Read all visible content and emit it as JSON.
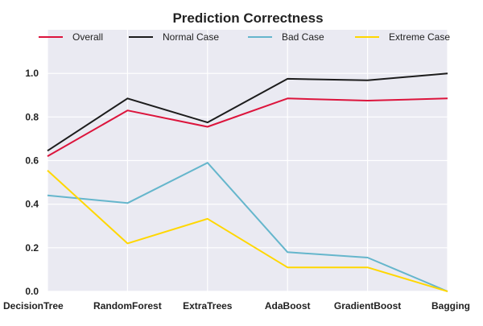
{
  "chart_data": {
    "type": "line",
    "title": "Prediction Correctness",
    "xlabel": "",
    "ylabel": "",
    "categories": [
      "DecisionTree",
      "RandomForest",
      "ExtraTrees",
      "AdaBoost",
      "GradientBoost",
      "Bagging"
    ],
    "ylim": [
      0.0,
      1.2
    ],
    "yticks": [
      "0.0",
      "0.2",
      "0.4",
      "0.6",
      "0.8",
      "1.0"
    ],
    "grid": true,
    "background": "#EAEAF2",
    "legend_position": "top",
    "series": [
      {
        "name": "Overall",
        "color": "#DC143C",
        "values": [
          0.62,
          0.83,
          0.755,
          0.885,
          0.875,
          0.885
        ]
      },
      {
        "name": "Normal Case",
        "color": "#1C1C1C",
        "values": [
          0.645,
          0.885,
          0.775,
          0.975,
          0.968,
          1.0
        ]
      },
      {
        "name": "Bad Case",
        "color": "#65B6CC",
        "values": [
          0.44,
          0.405,
          0.59,
          0.18,
          0.155,
          0.0
        ]
      },
      {
        "name": "Extreme Case",
        "color": "#FFD700",
        "values": [
          0.555,
          0.22,
          0.333,
          0.11,
          0.11,
          0.0
        ]
      }
    ]
  }
}
